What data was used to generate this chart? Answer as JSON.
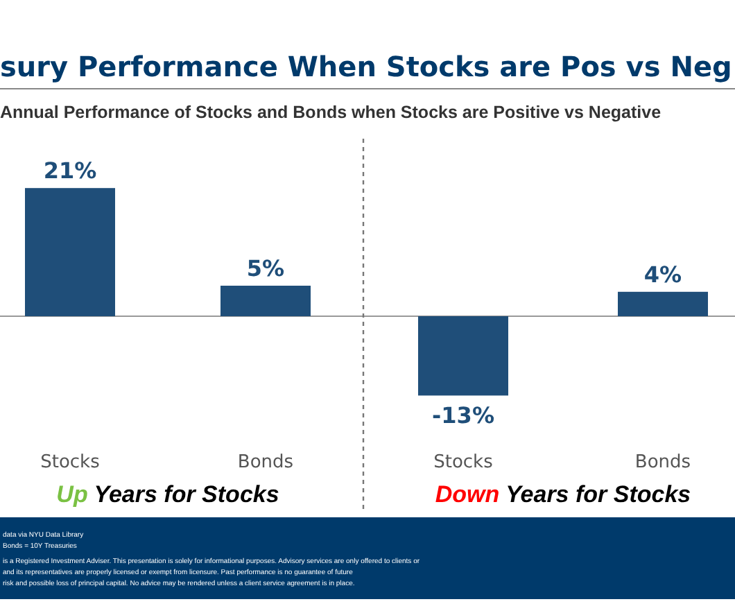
{
  "chart_data": [
    {
      "type": "bar",
      "title": "sury Performance When Stocks are Pos vs Neg",
      "subtitle": "Annual Performance of Stocks and Bonds when Stocks are Positive vs Negative",
      "xlabel": "Up Years for Stocks",
      "categories": [
        "Stocks",
        "Bonds"
      ],
      "values": [
        21,
        5
      ],
      "value_labels": [
        "21%",
        "5%"
      ],
      "color": "#1f4e79",
      "annotations": [
        "data via NYU Data Library",
        "Bonds = 10Y Treasuries",
        "is a Registered Investment Adviser. This presentation is solely for informational purposes. Advisory services are only offered to clients or",
        "and its representatives are properly licensed or exempt from licensure. Past performance is no guarantee of future",
        "risk and possible loss of principal capital. No advice may be rendered unless a client service agreement is in place."
      ]
    },
    {
      "type": "bar",
      "xlabel": "Down Years for Stocks",
      "categories": [
        "Stocks",
        "Bonds"
      ],
      "values": [
        -13,
        4
      ],
      "value_labels": [
        "-13%",
        "4%"
      ],
      "color": "#1f4e79"
    }
  ]
}
